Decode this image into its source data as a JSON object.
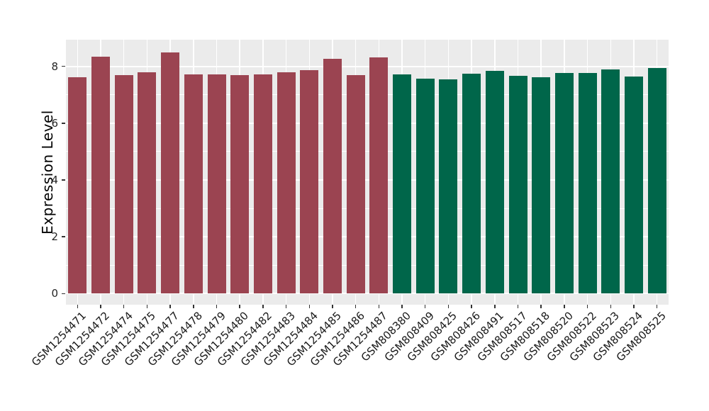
{
  "chart_data": {
    "type": "bar",
    "title": "",
    "xlabel": "",
    "ylabel": "Expression Level",
    "categories": [
      "GSM1254471",
      "GSM1254472",
      "GSM1254474",
      "GSM1254475",
      "GSM1254477",
      "GSM1254478",
      "GSM1254479",
      "GSM1254480",
      "GSM1254482",
      "GSM1254483",
      "GSM1254484",
      "GSM1254485",
      "GSM1254486",
      "GSM1254487",
      "GSM808380",
      "GSM808409",
      "GSM808425",
      "GSM808426",
      "GSM808491",
      "GSM808517",
      "GSM808518",
      "GSM808520",
      "GSM808522",
      "GSM808523",
      "GSM808524",
      "GSM808525"
    ],
    "values": [
      7.62,
      8.34,
      7.69,
      7.79,
      8.49,
      7.73,
      7.73,
      7.69,
      7.71,
      7.79,
      7.87,
      8.27,
      7.69,
      8.31,
      7.71,
      7.58,
      7.55,
      7.74,
      7.85,
      7.66,
      7.61,
      7.76,
      7.76,
      7.9,
      7.65,
      7.93
    ],
    "bar_group": [
      1,
      1,
      1,
      1,
      1,
      1,
      1,
      1,
      1,
      1,
      1,
      1,
      1,
      1,
      2,
      2,
      2,
      2,
      2,
      2,
      2,
      2,
      2,
      2,
      2,
      2
    ],
    "group_colors": {
      "1": "#9B4451",
      "2": "#00664A"
    },
    "y_ticks": [
      0,
      2,
      4,
      6,
      8
    ],
    "y_tick_labels": [
      "0",
      "2",
      "4",
      "6",
      "8"
    ],
    "y_minor_ticks": [
      1,
      3,
      5,
      7
    ],
    "ylim": [
      -0.39,
      8.94
    ],
    "grid": true,
    "legend": "none",
    "x_label_angle_deg": 45,
    "colors": {
      "panel_background": "#EBEBEB",
      "gridline": "#FFFFFF",
      "tick_mark": "#333333",
      "axis_text": "#262626",
      "axis_title": "#000000"
    }
  }
}
